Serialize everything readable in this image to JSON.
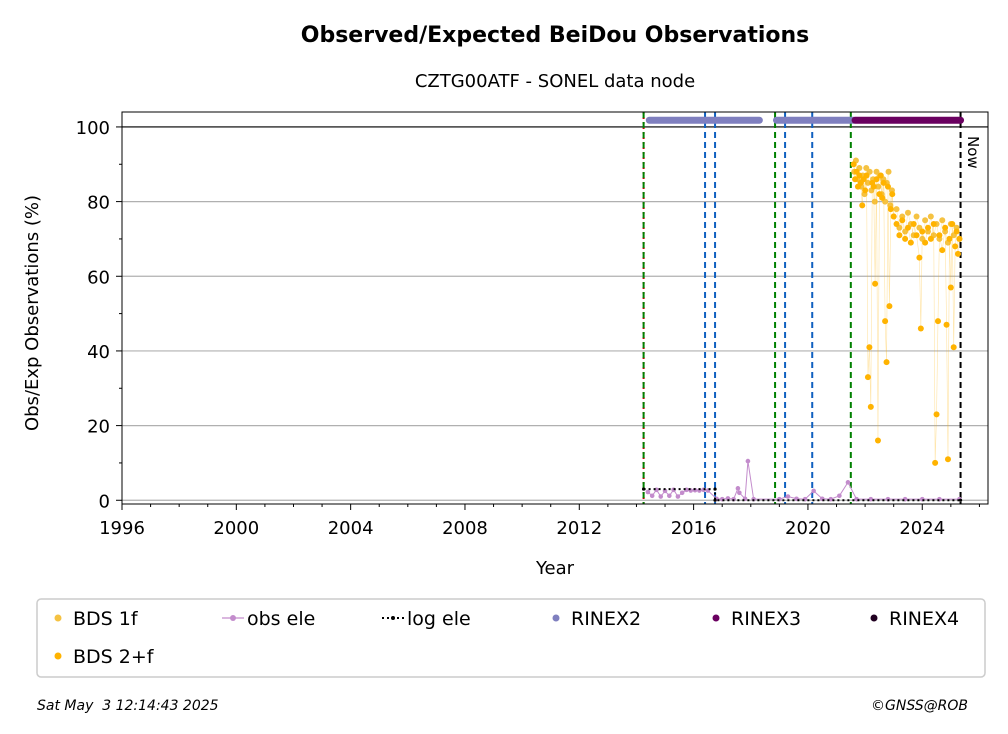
{
  "chart_data": {
    "type": "scatter",
    "title": "Observed/Expected BeiDou Observations",
    "subtitle": "CZTG00ATF - SONEL data node",
    "xlabel": "Year",
    "ylabel": "Obs/Exp Observations (%)",
    "xlim": [
      1996.0,
      2026.3
    ],
    "ylim": [
      -1,
      104
    ],
    "xticks": [
      1996,
      2000,
      2004,
      2008,
      2012,
      2016,
      2020,
      2024
    ],
    "yticks": [
      0,
      20,
      40,
      60,
      80,
      100
    ],
    "grid": "horizontal",
    "legend_position": "bottom",
    "now_label": "Now",
    "now_x": 2025.34,
    "footer_left": "Sat May  3 12:14:43 2025",
    "footer_right": "©GNSS@ROB",
    "legend": [
      {
        "label": "BDS 1f",
        "color": "#f5c242",
        "marker": "dot"
      },
      {
        "label": "obs ele",
        "color": "#c38ccc",
        "marker": "line-dot"
      },
      {
        "label": "log ele",
        "color": "#000000",
        "marker": "dotted-line"
      },
      {
        "label": "RINEX2",
        "color": "#7f7fbf",
        "marker": "dot"
      },
      {
        "label": "RINEX3",
        "color": "#6a0060",
        "marker": "dot"
      },
      {
        "label": "RINEX4",
        "color": "#200020",
        "marker": "dot"
      },
      {
        "label": "BDS 2+f",
        "color": "#ffb300",
        "marker": "dot"
      }
    ],
    "vertical_lines": [
      {
        "x": 2014.25,
        "color": "#cc0000",
        "style": "dotted"
      },
      {
        "x": 2014.25,
        "color": "#008000",
        "style": "dashed"
      },
      {
        "x": 2016.4,
        "color": "#1060c0",
        "style": "dashed"
      },
      {
        "x": 2016.75,
        "color": "#1060c0",
        "style": "dashed"
      },
      {
        "x": 2018.85,
        "color": "#008000",
        "style": "dashed"
      },
      {
        "x": 2019.2,
        "color": "#1060c0",
        "style": "dashed"
      },
      {
        "x": 2020.15,
        "color": "#1060c0",
        "style": "dashed"
      },
      {
        "x": 2021.5,
        "color": "#008000",
        "style": "dashed"
      },
      {
        "x": 2025.34,
        "color": "#000000",
        "style": "dashed"
      }
    ],
    "rinex_bars": [
      {
        "series": "RINEX2",
        "color": "#7f7fbf",
        "x_start": 2014.45,
        "x_end": 2018.3,
        "y": 101.8
      },
      {
        "series": "RINEX2",
        "color": "#7f7fbf",
        "x_start": 2018.9,
        "x_end": 2021.6,
        "y": 101.8
      },
      {
        "series": "RINEX3",
        "color": "#6a0060",
        "x_start": 2021.65,
        "x_end": 2025.34,
        "y": 101.8
      }
    ],
    "log_ele": [
      {
        "x": 2014.25,
        "y": 3
      },
      {
        "x": 2016.75,
        "y": 3
      },
      {
        "x": 2016.75,
        "y": 0
      },
      {
        "x": 2025.34,
        "y": 0
      }
    ],
    "obs_ele": [
      {
        "x": 2014.4,
        "y": 2.2
      },
      {
        "x": 2014.55,
        "y": 1.2
      },
      {
        "x": 2014.7,
        "y": 2.8
      },
      {
        "x": 2014.85,
        "y": 1.0
      },
      {
        "x": 2015.0,
        "y": 2.5
      },
      {
        "x": 2015.15,
        "y": 1.2
      },
      {
        "x": 2015.3,
        "y": 2.8
      },
      {
        "x": 2015.45,
        "y": 1.0
      },
      {
        "x": 2015.6,
        "y": 2.0
      },
      {
        "x": 2015.75,
        "y": 2.8
      },
      {
        "x": 2015.9,
        "y": 2.6
      },
      {
        "x": 2016.05,
        "y": 2.7
      },
      {
        "x": 2016.2,
        "y": 2.6
      },
      {
        "x": 2016.35,
        "y": 2.8
      },
      {
        "x": 2016.5,
        "y": 2.6
      },
      {
        "x": 2016.8,
        "y": 0.4
      },
      {
        "x": 2017.0,
        "y": 0.3
      },
      {
        "x": 2017.2,
        "y": 0.5
      },
      {
        "x": 2017.4,
        "y": 0.3
      },
      {
        "x": 2017.55,
        "y": 3.2
      },
      {
        "x": 2017.6,
        "y": 2.0
      },
      {
        "x": 2017.8,
        "y": 0.4
      },
      {
        "x": 2017.9,
        "y": 10.5
      },
      {
        "x": 2018.1,
        "y": 0.3
      },
      {
        "x": 2019.0,
        "y": 0.3
      },
      {
        "x": 2019.3,
        "y": 1.0
      },
      {
        "x": 2019.6,
        "y": 0.4
      },
      {
        "x": 2019.9,
        "y": 0.3
      },
      {
        "x": 2020.2,
        "y": 2.5
      },
      {
        "x": 2020.5,
        "y": 0.4
      },
      {
        "x": 2020.8,
        "y": 0.3
      },
      {
        "x": 2021.1,
        "y": 1.2
      },
      {
        "x": 2021.4,
        "y": 4.8
      },
      {
        "x": 2021.7,
        "y": 0.3
      },
      {
        "x": 2022.2,
        "y": 0.3
      },
      {
        "x": 2022.8,
        "y": 0.3
      },
      {
        "x": 2023.4,
        "y": 0.3
      },
      {
        "x": 2024.0,
        "y": 0.3
      },
      {
        "x": 2024.6,
        "y": 0.3
      },
      {
        "x": 2025.3,
        "y": 0.3
      }
    ],
    "series": [
      {
        "name": "BDS 1f",
        "color": "#f5c242",
        "points": [
          {
            "x": 2021.62,
            "y": 88
          },
          {
            "x": 2021.68,
            "y": 91
          },
          {
            "x": 2021.74,
            "y": 86
          },
          {
            "x": 2021.8,
            "y": 89
          },
          {
            "x": 2021.86,
            "y": 84
          },
          {
            "x": 2021.92,
            "y": 87
          },
          {
            "x": 2021.98,
            "y": 82
          },
          {
            "x": 2022.04,
            "y": 89
          },
          {
            "x": 2022.1,
            "y": 85
          },
          {
            "x": 2022.16,
            "y": 88
          },
          {
            "x": 2022.22,
            "y": 83
          },
          {
            "x": 2022.28,
            "y": 86
          },
          {
            "x": 2022.34,
            "y": 80
          },
          {
            "x": 2022.4,
            "y": 88
          },
          {
            "x": 2022.46,
            "y": 84
          },
          {
            "x": 2022.52,
            "y": 87
          },
          {
            "x": 2022.58,
            "y": 82
          },
          {
            "x": 2022.64,
            "y": 86
          },
          {
            "x": 2022.7,
            "y": 80
          },
          {
            "x": 2022.76,
            "y": 85
          },
          {
            "x": 2022.82,
            "y": 88
          },
          {
            "x": 2022.88,
            "y": 79
          },
          {
            "x": 2022.94,
            "y": 83
          },
          {
            "x": 2023.0,
            "y": 76
          },
          {
            "x": 2023.1,
            "y": 78
          },
          {
            "x": 2023.2,
            "y": 73
          },
          {
            "x": 2023.3,
            "y": 76
          },
          {
            "x": 2023.4,
            "y": 72
          },
          {
            "x": 2023.5,
            "y": 77
          },
          {
            "x": 2023.6,
            "y": 74
          },
          {
            "x": 2023.7,
            "y": 71
          },
          {
            "x": 2023.8,
            "y": 76
          },
          {
            "x": 2023.9,
            "y": 73
          },
          {
            "x": 2024.0,
            "y": 70
          },
          {
            "x": 2024.1,
            "y": 75
          },
          {
            "x": 2024.2,
            "y": 72
          },
          {
            "x": 2024.3,
            "y": 76
          },
          {
            "x": 2024.4,
            "y": 71
          },
          {
            "x": 2024.5,
            "y": 74
          },
          {
            "x": 2024.6,
            "y": 70
          },
          {
            "x": 2024.7,
            "y": 75
          },
          {
            "x": 2024.8,
            "y": 72
          },
          {
            "x": 2024.9,
            "y": 69
          },
          {
            "x": 2025.0,
            "y": 74
          },
          {
            "x": 2025.1,
            "y": 71
          },
          {
            "x": 2025.2,
            "y": 73
          },
          {
            "x": 2025.3,
            "y": 70
          }
        ]
      },
      {
        "name": "BDS 2+f",
        "color": "#ffb300",
        "points": [
          {
            "x": 2021.6,
            "y": 90
          },
          {
            "x": 2021.65,
            "y": 86
          },
          {
            "x": 2021.7,
            "y": 88
          },
          {
            "x": 2021.75,
            "y": 84
          },
          {
            "x": 2021.8,
            "y": 87
          },
          {
            "x": 2021.85,
            "y": 85
          },
          {
            "x": 2021.9,
            "y": 79
          },
          {
            "x": 2021.95,
            "y": 86
          },
          {
            "x": 2022.0,
            "y": 83
          },
          {
            "x": 2022.05,
            "y": 87
          },
          {
            "x": 2022.1,
            "y": 33
          },
          {
            "x": 2022.15,
            "y": 41
          },
          {
            "x": 2022.2,
            "y": 25
          },
          {
            "x": 2022.25,
            "y": 85
          },
          {
            "x": 2022.3,
            "y": 84
          },
          {
            "x": 2022.35,
            "y": 58
          },
          {
            "x": 2022.4,
            "y": 86
          },
          {
            "x": 2022.45,
            "y": 16
          },
          {
            "x": 2022.5,
            "y": 82
          },
          {
            "x": 2022.55,
            "y": 87
          },
          {
            "x": 2022.6,
            "y": 81
          },
          {
            "x": 2022.65,
            "y": 85
          },
          {
            "x": 2022.7,
            "y": 48
          },
          {
            "x": 2022.75,
            "y": 37
          },
          {
            "x": 2022.8,
            "y": 84
          },
          {
            "x": 2022.85,
            "y": 52
          },
          {
            "x": 2022.9,
            "y": 78
          },
          {
            "x": 2022.95,
            "y": 82
          },
          {
            "x": 2023.0,
            "y": 76
          },
          {
            "x": 2023.1,
            "y": 74
          },
          {
            "x": 2023.2,
            "y": 71
          },
          {
            "x": 2023.3,
            "y": 75
          },
          {
            "x": 2023.4,
            "y": 70
          },
          {
            "x": 2023.5,
            "y": 73
          },
          {
            "x": 2023.6,
            "y": 69
          },
          {
            "x": 2023.7,
            "y": 74
          },
          {
            "x": 2023.8,
            "y": 71
          },
          {
            "x": 2023.9,
            "y": 65
          },
          {
            "x": 2023.95,
            "y": 46
          },
          {
            "x": 2024.0,
            "y": 72
          },
          {
            "x": 2024.1,
            "y": 69
          },
          {
            "x": 2024.2,
            "y": 73
          },
          {
            "x": 2024.3,
            "y": 70
          },
          {
            "x": 2024.4,
            "y": 74
          },
          {
            "x": 2024.45,
            "y": 10
          },
          {
            "x": 2024.5,
            "y": 23
          },
          {
            "x": 2024.55,
            "y": 48
          },
          {
            "x": 2024.6,
            "y": 71
          },
          {
            "x": 2024.7,
            "y": 67
          },
          {
            "x": 2024.8,
            "y": 73
          },
          {
            "x": 2024.85,
            "y": 47
          },
          {
            "x": 2024.9,
            "y": 11
          },
          {
            "x": 2024.95,
            "y": 70
          },
          {
            "x": 2025.0,
            "y": 57
          },
          {
            "x": 2025.05,
            "y": 74
          },
          {
            "x": 2025.1,
            "y": 41
          },
          {
            "x": 2025.15,
            "y": 68
          },
          {
            "x": 2025.2,
            "y": 72
          },
          {
            "x": 2025.25,
            "y": 66
          },
          {
            "x": 2025.3,
            "y": 70
          }
        ]
      }
    ]
  }
}
